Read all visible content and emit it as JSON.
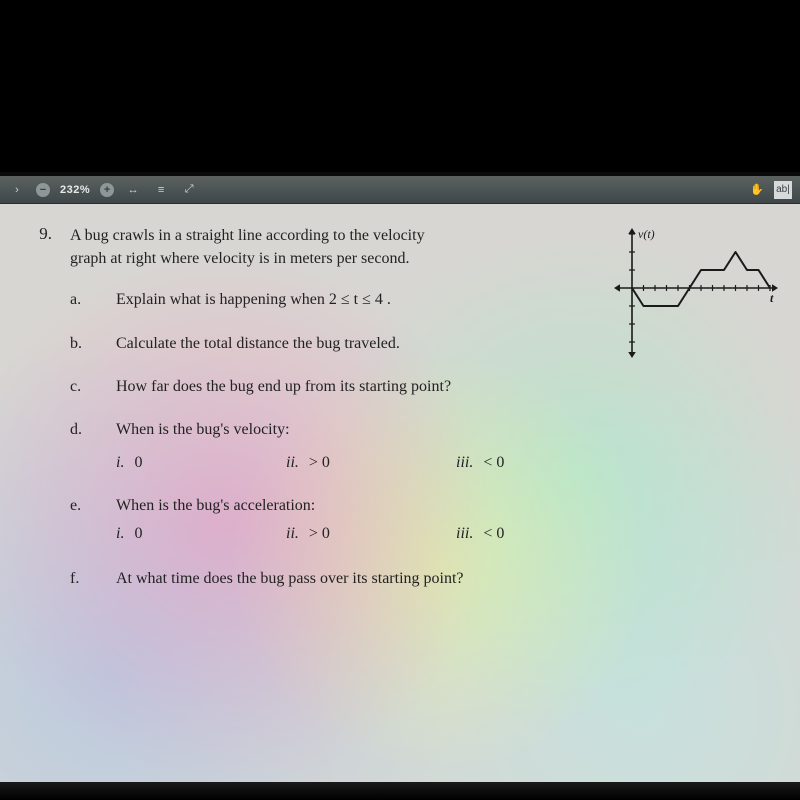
{
  "toolbar": {
    "zoom_label": "232%",
    "left_chevron": "›",
    "minus_icon": "−",
    "plus_icon": "+",
    "expand": "↔",
    "lineheight": "≡",
    "fit": "⤢",
    "hand": "✋",
    "ab_label": "ab|"
  },
  "question": {
    "number": "9.",
    "stem_l1": "A bug crawls in a straight line according to the velocity",
    "stem_l2": "graph at right where velocity is in meters per second.",
    "parts": {
      "a": {
        "label": "a.",
        "text": "Explain what is happening when  2 ≤ t ≤ 4 ."
      },
      "b": {
        "label": "b.",
        "text": "Calculate the total distance the bug traveled."
      },
      "c": {
        "label": "c.",
        "text": "How far does the bug end up from its starting point?"
      },
      "d": {
        "label": "d.",
        "text": "When is the bug's velocity:",
        "i_label": "i.",
        "i_val": "0",
        "ii_label": "ii.",
        "ii_val": "> 0",
        "iii_label": "iii.",
        "iii_val": "< 0"
      },
      "e": {
        "label": "e.",
        "text": "When is the bug's acceleration:",
        "i_label": "i.",
        "i_val": "0",
        "ii_label": "ii.",
        "ii_val": "> 0",
        "iii_label": "iii.",
        "iii_val": "< 0"
      },
      "f": {
        "label": "f.",
        "text": "At what time does the bug pass over its starting point?"
      }
    }
  },
  "chart": {
    "type": "line",
    "y_axis_label": "v(t)",
    "t_axis_label": "t",
    "xlim": [
      0,
      12
    ],
    "ylim": [
      -3,
      3
    ],
    "xtick_step": 1,
    "ytick_step": 1,
    "series": [
      {
        "t": 0,
        "v": 0
      },
      {
        "t": 1,
        "v": -1
      },
      {
        "t": 2,
        "v": -1
      },
      {
        "t": 4,
        "v": -1
      },
      {
        "t": 6,
        "v": 1
      },
      {
        "t": 8,
        "v": 1
      },
      {
        "t": 9,
        "v": 2
      },
      {
        "t": 10,
        "v": 1
      },
      {
        "t": 11,
        "v": 1
      },
      {
        "t": 12,
        "v": 0
      }
    ],
    "axis_color": "#1a1a1a",
    "line_color": "#1a1a1a",
    "tick_color": "#1a1a1a",
    "line_width": 2,
    "arrow_size": 6,
    "background_color": "transparent",
    "label_fontsize": 12,
    "label_font": "Times New Roman"
  }
}
